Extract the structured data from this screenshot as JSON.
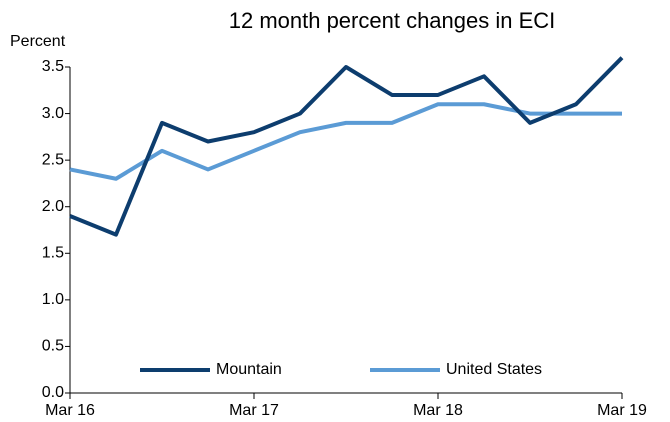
{
  "chart_data": {
    "type": "line",
    "title": "12  month percent changes in ECI",
    "y_label": "Percent",
    "categories": [
      "Mar 16",
      null,
      null,
      null,
      "Mar 17",
      null,
      null,
      null,
      "Mar 18",
      null,
      null,
      null,
      "Mar 19"
    ],
    "series": [
      {
        "name": "Mountain",
        "color": "#0d3d6e",
        "values": [
          1.9,
          1.7,
          2.9,
          2.7,
          2.8,
          3.0,
          3.5,
          3.2,
          3.2,
          3.4,
          2.9,
          3.1,
          3.6
        ]
      },
      {
        "name": "United States",
        "color": "#5b9bd5",
        "values": [
          2.4,
          2.3,
          2.6,
          2.4,
          2.6,
          2.8,
          2.9,
          2.9,
          3.1,
          3.1,
          3.0,
          3.0,
          3.0
        ]
      }
    ],
    "ylim": [
      0,
      3.5
    ],
    "yticks": [
      {
        "value": 0,
        "label": "0.0"
      },
      0.5,
      {
        "value": 1,
        "label": "1.0"
      },
      1.5,
      {
        "value": 2,
        "label": "2.0"
      },
      2.5,
      {
        "value": 3,
        "label": "3.0"
      },
      3.5
    ],
    "grid": false,
    "legend": "bottom"
  }
}
